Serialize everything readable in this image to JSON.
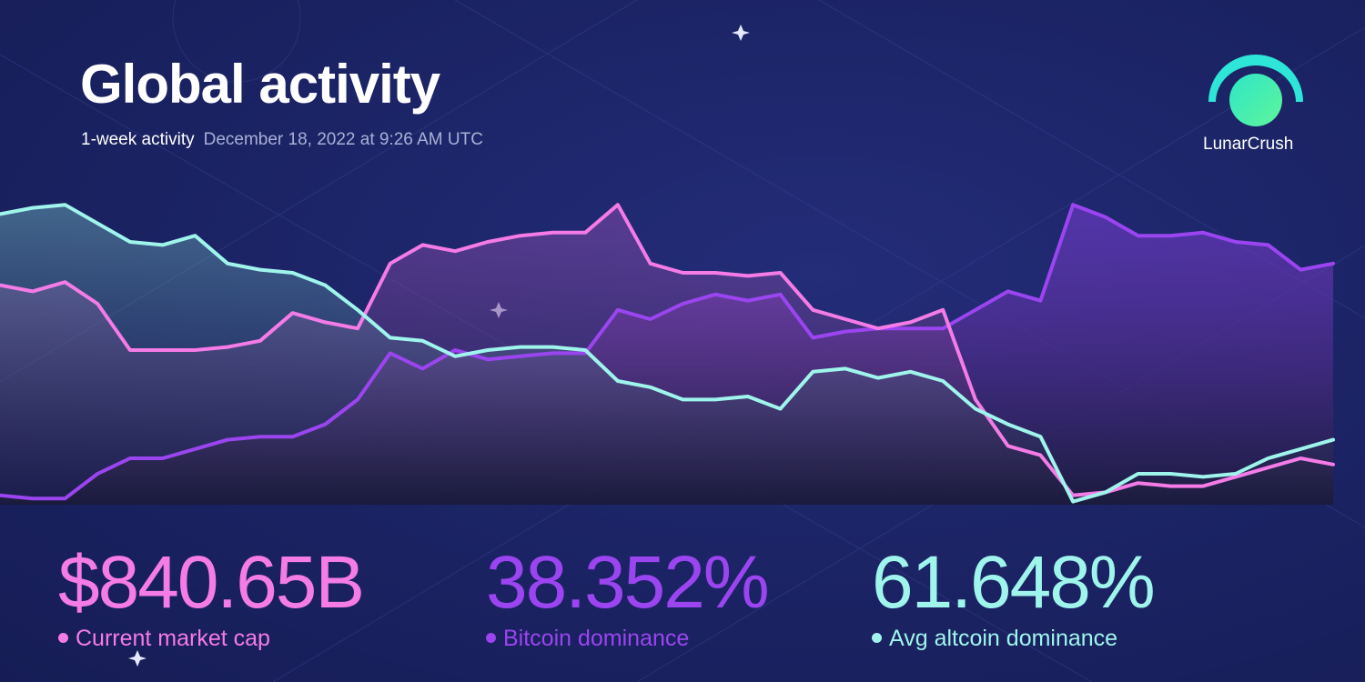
{
  "header": {
    "title": "Global activity",
    "subtitle": "1-week activity",
    "timestamp": "December 18, 2022 at 9:26 AM UTC"
  },
  "brand": "LunarCrush",
  "chart_data": {
    "type": "line",
    "categories": [
      null,
      null,
      null,
      null,
      null,
      null,
      null,
      null,
      null,
      null,
      null,
      null,
      null,
      null,
      null,
      null,
      null,
      null,
      null,
      null,
      null,
      null,
      null,
      null,
      null,
      null,
      null,
      null,
      null,
      null,
      null,
      null,
      null,
      null,
      null,
      null,
      null,
      null,
      null,
      null,
      null,
      null
    ],
    "ylim": [
      0,
      100
    ],
    "series": [
      {
        "name": "Bitcoin dominance",
        "color": "#9b45f0",
        "values": [
          3,
          2,
          2,
          10,
          15,
          15,
          18,
          21,
          22,
          22,
          26,
          34,
          49,
          44,
          50,
          47,
          48,
          49,
          49,
          63,
          60,
          65,
          68,
          66,
          68,
          54,
          56,
          57,
          57,
          57,
          63,
          69,
          66,
          97,
          93,
          87,
          87,
          88,
          85,
          84,
          76,
          78
        ]
      },
      {
        "name": "Current market cap",
        "color": "#f57be6",
        "values": [
          71,
          69,
          72,
          65,
          50,
          50,
          50,
          51,
          53,
          62,
          59,
          57,
          78,
          84,
          82,
          85,
          87,
          88,
          88,
          97,
          78,
          75,
          75,
          74,
          75,
          63,
          60,
          57,
          59,
          63,
          34,
          19,
          16,
          3,
          4,
          7,
          6,
          6,
          9,
          12,
          15,
          13
        ]
      },
      {
        "name": "Avg altcoin dominance",
        "color": "#9ff5ec",
        "values": [
          94,
          96,
          97,
          91,
          85,
          84,
          87,
          78,
          76,
          75,
          71,
          63,
          54,
          53,
          48,
          50,
          51,
          51,
          50,
          40,
          38,
          34,
          34,
          35,
          31,
          43,
          44,
          41,
          43,
          40,
          31,
          26,
          22,
          1,
          4,
          10,
          10,
          9,
          10,
          15,
          18,
          21
        ]
      }
    ]
  },
  "stats": [
    {
      "value": "$840.65B",
      "label": "Current market cap"
    },
    {
      "value": "38.352%",
      "label": "Bitcoin dominance"
    },
    {
      "value": "61.648%",
      "label": "Avg altcoin dominance"
    }
  ]
}
